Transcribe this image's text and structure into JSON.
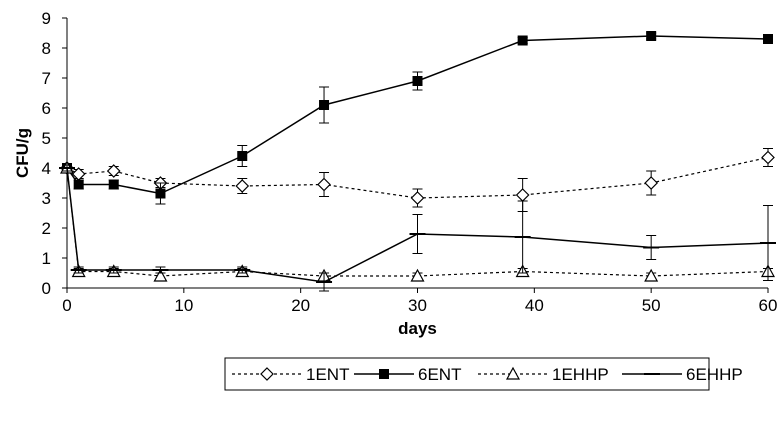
{
  "chart_data": {
    "type": "line",
    "title": "",
    "xlabel": "days",
    "ylabel": "CFU/g",
    "xlim": [
      0,
      60
    ],
    "ylim": [
      0,
      9
    ],
    "xticks": [
      0,
      10,
      20,
      30,
      40,
      50,
      60
    ],
    "yticks": [
      0,
      1,
      2,
      3,
      4,
      5,
      6,
      7,
      8,
      9
    ],
    "grid": false,
    "legend_position": "bottom",
    "series": [
      {
        "name": "1ENT",
        "line": "dotted",
        "marker": "diamond-open",
        "x": [
          0,
          1,
          4,
          8,
          15,
          22,
          30,
          39,
          50,
          60
        ],
        "y": [
          4.0,
          3.8,
          3.9,
          3.5,
          3.4,
          3.45,
          3.0,
          3.1,
          3.5,
          4.35
        ],
        "err": [
          0.15,
          0.15,
          0.15,
          0.15,
          0.25,
          0.4,
          0.3,
          0.55,
          0.4,
          0.3
        ]
      },
      {
        "name": "6ENT",
        "line": "solid",
        "marker": "square-filled",
        "x": [
          0,
          1,
          4,
          8,
          15,
          22,
          30,
          39,
          50,
          60
        ],
        "y": [
          4.0,
          3.45,
          3.45,
          3.15,
          4.4,
          6.1,
          6.9,
          8.25,
          8.4,
          8.3
        ],
        "err": [
          0.15,
          0.15,
          0.15,
          0.35,
          0.35,
          0.6,
          0.3,
          0.1,
          0.1,
          0.15
        ]
      },
      {
        "name": "1EHHP",
        "line": "dotted",
        "marker": "triangle-open",
        "x": [
          0,
          1,
          4,
          8,
          15,
          22,
          30,
          39,
          50,
          60
        ],
        "y": [
          4.0,
          0.55,
          0.55,
          0.4,
          0.55,
          0.4,
          0.4,
          0.55,
          0.4,
          0.55
        ],
        "err": [
          0.1,
          0.1,
          0.1,
          0.1,
          0.1,
          0.1,
          0.1,
          0.1,
          0.1,
          0.1
        ]
      },
      {
        "name": "6EHHP",
        "line": "solid",
        "marker": "dash",
        "x": [
          0,
          1,
          4,
          8,
          15,
          22,
          30,
          39,
          50,
          60
        ],
        "y": [
          4.0,
          0.6,
          0.6,
          0.6,
          0.6,
          0.2,
          1.8,
          1.7,
          1.35,
          1.5
        ],
        "err": [
          0.1,
          0.1,
          0.1,
          0.1,
          0.1,
          0.3,
          0.65,
          1.2,
          0.4,
          1.25
        ]
      }
    ]
  }
}
